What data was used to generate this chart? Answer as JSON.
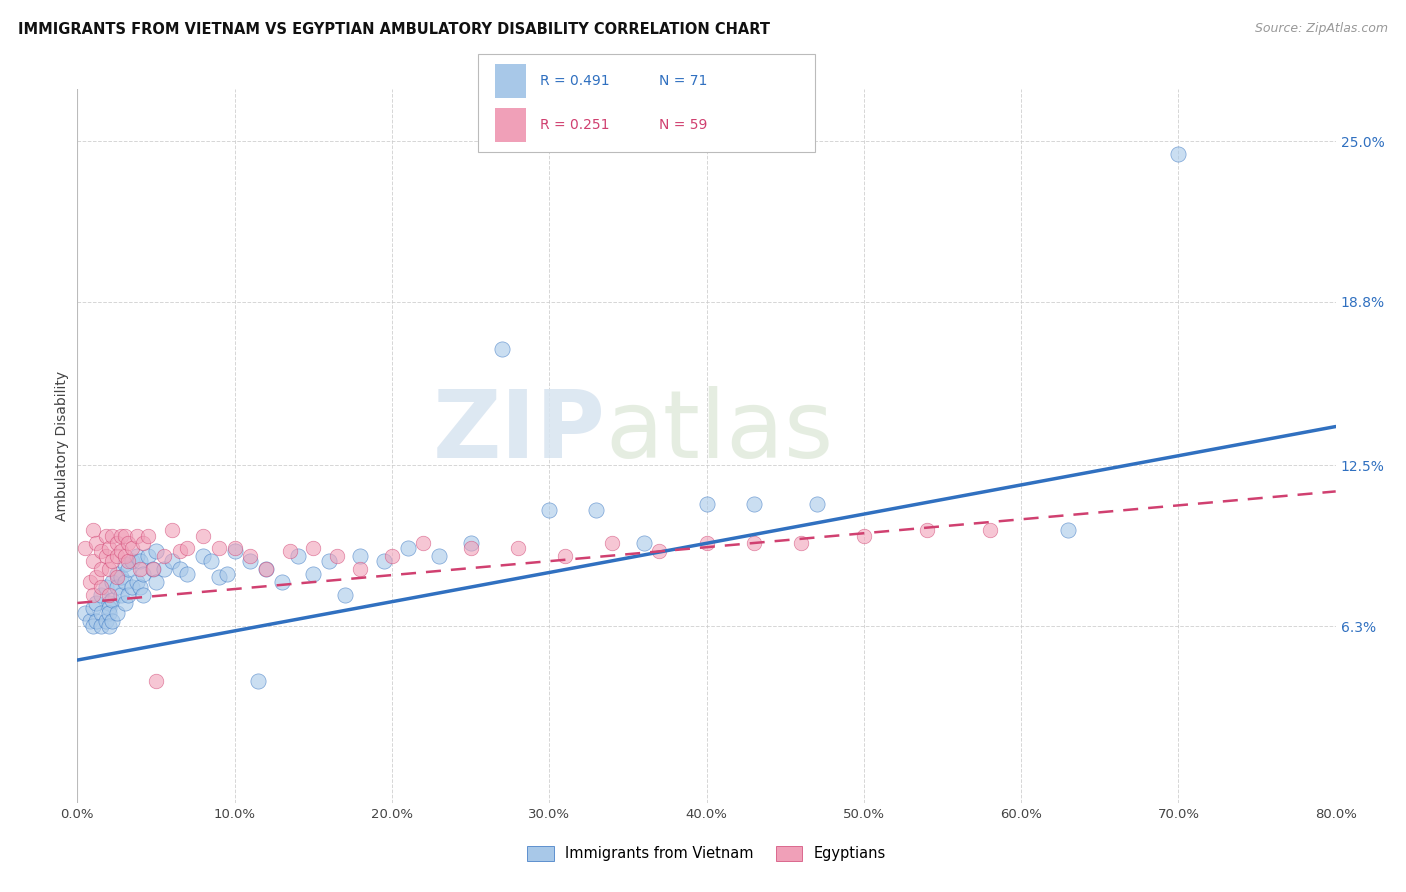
{
  "title": "IMMIGRANTS FROM VIETNAM VS EGYPTIAN AMBULATORY DISABILITY CORRELATION CHART",
  "source": "Source: ZipAtlas.com",
  "ylabel": "Ambulatory Disability",
  "yticks": [
    "6.3%",
    "12.5%",
    "18.8%",
    "25.0%"
  ],
  "ytick_vals": [
    0.063,
    0.125,
    0.188,
    0.25
  ],
  "xlim": [
    0.0,
    0.8
  ],
  "ylim": [
    -0.005,
    0.27
  ],
  "color_vietnam": "#a8c8e8",
  "color_egypt": "#f0a0b8",
  "color_line_vietnam": "#3070c0",
  "color_line_egypt": "#d04070",
  "watermark_zip": "ZIP",
  "watermark_atlas": "atlas",
  "vietnam_x": [
    0.005,
    0.008,
    0.01,
    0.01,
    0.012,
    0.012,
    0.015,
    0.015,
    0.015,
    0.018,
    0.018,
    0.02,
    0.02,
    0.02,
    0.02,
    0.022,
    0.022,
    0.022,
    0.025,
    0.025,
    0.025,
    0.028,
    0.028,
    0.03,
    0.03,
    0.03,
    0.032,
    0.032,
    0.035,
    0.035,
    0.038,
    0.038,
    0.04,
    0.04,
    0.042,
    0.042,
    0.045,
    0.048,
    0.05,
    0.05,
    0.055,
    0.06,
    0.065,
    0.07,
    0.08,
    0.085,
    0.09,
    0.095,
    0.1,
    0.11,
    0.115,
    0.12,
    0.13,
    0.14,
    0.15,
    0.16,
    0.17,
    0.18,
    0.195,
    0.21,
    0.23,
    0.25,
    0.27,
    0.3,
    0.33,
    0.36,
    0.4,
    0.43,
    0.47,
    0.63,
    0.7
  ],
  "vietnam_y": [
    0.068,
    0.065,
    0.07,
    0.063,
    0.072,
    0.065,
    0.075,
    0.068,
    0.063,
    0.078,
    0.065,
    0.072,
    0.07,
    0.068,
    0.063,
    0.08,
    0.073,
    0.065,
    0.083,
    0.078,
    0.068,
    0.082,
    0.075,
    0.087,
    0.08,
    0.072,
    0.085,
    0.075,
    0.088,
    0.078,
    0.09,
    0.08,
    0.088,
    0.078,
    0.083,
    0.075,
    0.09,
    0.085,
    0.092,
    0.08,
    0.085,
    0.088,
    0.085,
    0.083,
    0.09,
    0.088,
    0.082,
    0.083,
    0.092,
    0.088,
    0.042,
    0.085,
    0.08,
    0.09,
    0.083,
    0.088,
    0.075,
    0.09,
    0.088,
    0.093,
    0.09,
    0.095,
    0.17,
    0.108,
    0.108,
    0.095,
    0.11,
    0.11,
    0.11,
    0.1,
    0.245
  ],
  "egypt_x": [
    0.005,
    0.008,
    0.01,
    0.01,
    0.01,
    0.012,
    0.012,
    0.015,
    0.015,
    0.015,
    0.018,
    0.018,
    0.02,
    0.02,
    0.02,
    0.022,
    0.022,
    0.025,
    0.025,
    0.025,
    0.028,
    0.028,
    0.03,
    0.03,
    0.032,
    0.032,
    0.035,
    0.038,
    0.04,
    0.042,
    0.045,
    0.048,
    0.05,
    0.055,
    0.06,
    0.065,
    0.07,
    0.08,
    0.09,
    0.1,
    0.11,
    0.12,
    0.135,
    0.15,
    0.165,
    0.18,
    0.2,
    0.22,
    0.25,
    0.28,
    0.31,
    0.34,
    0.37,
    0.4,
    0.43,
    0.46,
    0.5,
    0.54,
    0.58
  ],
  "egypt_y": [
    0.093,
    0.08,
    0.1,
    0.088,
    0.075,
    0.095,
    0.082,
    0.092,
    0.085,
    0.078,
    0.098,
    0.09,
    0.093,
    0.085,
    0.075,
    0.098,
    0.088,
    0.095,
    0.09,
    0.082,
    0.098,
    0.092,
    0.098,
    0.09,
    0.095,
    0.088,
    0.093,
    0.098,
    0.085,
    0.095,
    0.098,
    0.085,
    0.042,
    0.09,
    0.1,
    0.092,
    0.093,
    0.098,
    0.093,
    0.093,
    0.09,
    0.085,
    0.092,
    0.093,
    0.09,
    0.085,
    0.09,
    0.095,
    0.093,
    0.093,
    0.09,
    0.095,
    0.092,
    0.095,
    0.095,
    0.095,
    0.098,
    0.1,
    0.1
  ],
  "viet_line_x": [
    0.0,
    0.8
  ],
  "viet_line_y": [
    0.05,
    0.14
  ],
  "egypt_line_x": [
    0.0,
    0.8
  ],
  "egypt_line_y": [
    0.072,
    0.115
  ]
}
